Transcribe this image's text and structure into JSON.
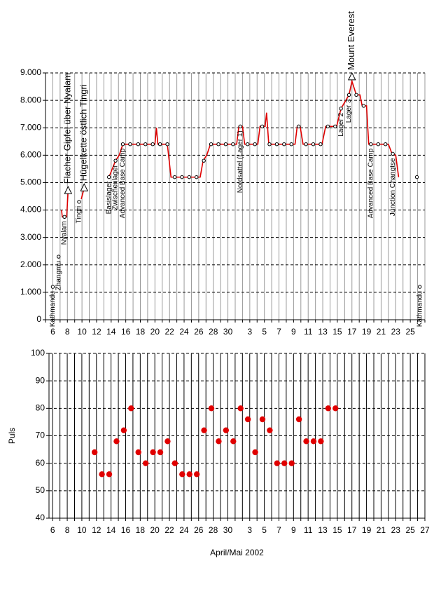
{
  "chart_data": [
    {
      "type": "line",
      "xlim": [
        -1,
        51
      ],
      "ylim": [
        0,
        9000
      ],
      "xticks": [
        {
          "value": 0,
          "label": "6"
        },
        {
          "value": 2,
          "label": "8"
        },
        {
          "value": 4,
          "label": "10"
        },
        {
          "value": 6,
          "label": "12"
        },
        {
          "value": 8,
          "label": "14"
        },
        {
          "value": 10,
          "label": "16"
        },
        {
          "value": 12,
          "label": "18"
        },
        {
          "value": 14,
          "label": "20"
        },
        {
          "value": 16,
          "label": "22"
        },
        {
          "value": 18,
          "label": "24"
        },
        {
          "value": 20,
          "label": "26"
        },
        {
          "value": 22,
          "label": "28"
        },
        {
          "value": 24,
          "label": "30"
        },
        {
          "value": 27,
          "label": "3"
        },
        {
          "value": 29,
          "label": "5"
        },
        {
          "value": 31,
          "label": "7"
        },
        {
          "value": 33,
          "label": "9"
        },
        {
          "value": 35,
          "label": "11"
        },
        {
          "value": 37,
          "label": "13"
        },
        {
          "value": 39,
          "label": "15"
        },
        {
          "value": 41,
          "label": "17"
        },
        {
          "value": 43,
          "label": "19"
        },
        {
          "value": 45,
          "label": "21"
        },
        {
          "value": 47,
          "label": "23"
        },
        {
          "value": 49,
          "label": "25"
        }
      ],
      "yticks": [
        0,
        {
          "value": 1000,
          "label": "1.000"
        },
        {
          "value": 2000,
          "label": "2.000"
        },
        {
          "value": 3000,
          "label": "3.000"
        },
        {
          "value": 4000,
          "label": "4.000"
        },
        {
          "value": 5000,
          "label": "5.000"
        },
        {
          "value": 6000,
          "label": "6.000"
        },
        {
          "value": 7000,
          "label": "7.000"
        },
        {
          "value": 8000,
          "label": "8.000"
        },
        {
          "value": 9000,
          "label": "9.000"
        }
      ],
      "grid": true,
      "series": [
        {
          "color": "#e00000",
          "x": [
            1.2,
            1.3,
            1.9,
            2.1,
            null,
            3.9,
            4.3,
            null,
            7.7,
            8.6,
            9.1,
            9.6,
            14.0,
            14.2,
            14.4,
            15.7,
            16.2,
            20.2,
            20.6,
            21.1,
            21.6,
            25.2,
            25.5,
            26.0,
            26.3,
            28.1,
            28.4,
            29.1,
            29.3,
            29.6,
            33.2,
            33.5,
            33.9,
            34.3,
            36.9,
            37.4,
            38.9,
            39.5,
            40.6,
            41.0,
            41.6,
            42.1,
            42.4,
            43.0,
            43.3,
            46.0,
            46.5,
            47.0,
            47.4
          ],
          "values": [
            4000,
            3750,
            3750,
            4700,
            null,
            4400,
            4800,
            null,
            5200,
            5800,
            6000,
            6400,
            6400,
            7000,
            6400,
            6400,
            5200,
            5200,
            5800,
            6000,
            6400,
            6400,
            7050,
            7050,
            6400,
            6400,
            7050,
            7050,
            7550,
            6400,
            6400,
            7050,
            7050,
            6400,
            6400,
            7050,
            7050,
            7700,
            8200,
            8700,
            8200,
            8200,
            7800,
            7800,
            6400,
            6400,
            6050,
            6000,
            5200
          ]
        }
      ],
      "points": {
        "x": [
          10.6,
          11.7,
          12.7,
          13.7,
          14.7,
          15.7,
          16.7,
          17.7,
          18.7,
          19.7,
          20.7,
          21.7,
          22.7,
          23.7,
          24.7,
          26.7,
          27.7,
          28.7,
          29.7,
          30.7,
          31.7,
          32.7,
          33.7,
          34.7,
          35.7,
          36.7,
          37.7,
          38.7,
          41.6,
          42.6,
          44.6,
          45.6,
          49.9
        ],
        "values": [
          6400,
          6400,
          6400,
          6400,
          6400,
          6400,
          5200,
          5200,
          5200,
          5200,
          5800,
          6400,
          6400,
          6400,
          6400,
          6400,
          6400,
          7050,
          6400,
          6400,
          6400,
          6400,
          7050,
          6400,
          6400,
          6400,
          7050,
          7050,
          8200,
          7800,
          6400,
          6400,
          5200
        ]
      },
      "markers": [
        {
          "label": "Kathmandu",
          "x": 0,
          "y": 1200
        },
        {
          "label": "Zhangmu",
          "x": 0.8,
          "y": 2300
        },
        {
          "label": "Nyalam",
          "x": 1.6,
          "y": 3750
        },
        {
          "label": "Tingri",
          "x": 3.6,
          "y": 4300
        },
        {
          "label": "Basislager",
          "x": 7.7,
          "y": 5200
        },
        {
          "label": "Zwischenlager",
          "x": 8.6,
          "y": 5800
        },
        {
          "label": "Advanced Base Camp",
          "x": 9.6,
          "y": 6400
        },
        {
          "label": "Nordsattel (Lager 1)",
          "x": 25.7,
          "y": 7050
        },
        {
          "label": "Lager 2",
          "x": 39.5,
          "y": 7700
        },
        {
          "label": "Lager 3",
          "x": 40.6,
          "y": 8200
        },
        {
          "label": "Advanced Base Camp",
          "x": 43.6,
          "y": 6400
        },
        {
          "label": "Junction Changtse",
          "x": 46.6,
          "y": 6050
        },
        {
          "label": "Kathmandu",
          "x": 50.3,
          "y": 1200
        }
      ],
      "peaks": [
        {
          "label": "Flacher Gipfel über Nyalam",
          "x": 2.1,
          "y": 4700
        },
        {
          "label": "Hügelkette östlich Tingri",
          "x": 4.3,
          "y": 4800
        },
        {
          "label": "Mount Everest",
          "x": 41.0,
          "y": 8850
        }
      ]
    },
    {
      "type": "scatter",
      "xlabel": "April/Mai 2002",
      "ylabel": "Puls",
      "xlim": [
        -0.5,
        51
      ],
      "ylim": [
        40,
        100
      ],
      "xticks": [
        {
          "value": 0,
          "label": "6"
        },
        {
          "value": 2,
          "label": "8"
        },
        {
          "value": 4,
          "label": "10"
        },
        {
          "value": 6,
          "label": "12"
        },
        {
          "value": 8,
          "label": "14"
        },
        {
          "value": 10,
          "label": "16"
        },
        {
          "value": 12,
          "label": "18"
        },
        {
          "value": 14,
          "label": "20"
        },
        {
          "value": 16,
          "label": "22"
        },
        {
          "value": 18,
          "label": "24"
        },
        {
          "value": 20,
          "label": "26"
        },
        {
          "value": 22,
          "label": "28"
        },
        {
          "value": 24,
          "label": "30"
        },
        {
          "value": 27,
          "label": "3"
        },
        {
          "value": 29,
          "label": "5"
        },
        {
          "value": 31,
          "label": "7"
        },
        {
          "value": 33,
          "label": "9"
        },
        {
          "value": 35,
          "label": "11"
        },
        {
          "value": 37,
          "label": "13"
        },
        {
          "value": 39,
          "label": "15"
        },
        {
          "value": 41,
          "label": "17"
        },
        {
          "value": 43,
          "label": "19"
        },
        {
          "value": 45,
          "label": "21"
        },
        {
          "value": 47,
          "label": "23"
        },
        {
          "value": 49,
          "label": "25"
        },
        {
          "value": 51,
          "label": "27"
        }
      ],
      "yticks": [
        40,
        50,
        60,
        70,
        80,
        90,
        100
      ],
      "grid": true,
      "color": "#e00000",
      "x": [
        5.75,
        6.75,
        7.75,
        8.75,
        9.75,
        10.75,
        11.75,
        12.75,
        13.75,
        14.75,
        15.75,
        16.75,
        17.75,
        18.75,
        19.75,
        20.75,
        21.75,
        22.75,
        23.75,
        24.75,
        25.75,
        26.75,
        27.75,
        28.75,
        29.75,
        30.75,
        31.75,
        32.75,
        33.75,
        34.75,
        35.75,
        36.75,
        37.75,
        38.75
      ],
      "values": [
        64,
        56,
        56,
        68,
        72,
        80,
        64,
        60,
        64,
        64,
        68,
        60,
        56,
        56,
        56,
        72,
        80,
        68,
        72,
        68,
        80,
        76,
        64,
        76,
        72,
        60,
        60,
        60,
        76,
        68,
        68,
        68,
        80,
        80
      ]
    }
  ]
}
